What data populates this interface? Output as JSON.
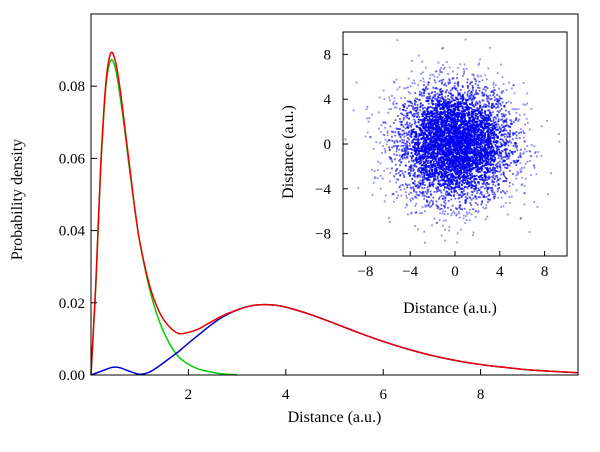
{
  "chart_data": [
    {
      "type": "line",
      "title": "",
      "xlabel": "Distance (a.u.)",
      "ylabel": "Probability density",
      "xlim": [
        0,
        10
      ],
      "ylim": [
        0,
        0.1
      ],
      "xticks": [
        2,
        4,
        6,
        8
      ],
      "xtick_labels": [
        "2",
        "4",
        "6",
        "8"
      ],
      "yticks": [
        0,
        0.02,
        0.04,
        0.06,
        0.08
      ],
      "ytick_labels": [
        "0.00",
        "0.02",
        "0.04",
        "0.06",
        "0.08"
      ],
      "grid": false,
      "legend": "none",
      "series": [
        {
          "color": "#00cc00",
          "x": [
            0,
            0.1,
            0.2,
            0.3,
            0.4,
            0.5,
            0.6,
            0.7,
            0.8,
            0.9,
            1.0,
            1.2,
            1.4,
            1.6,
            1.8,
            2.0,
            2.2,
            2.4,
            2.6,
            2.8,
            3.0
          ],
          "y": [
            0,
            0.025,
            0.057,
            0.079,
            0.087,
            0.085,
            0.077,
            0.067,
            0.056,
            0.046,
            0.037,
            0.024,
            0.015,
            0.009,
            0.005,
            0.003,
            0.0017,
            0.001,
            0.0005,
            0.0002,
            0
          ]
        },
        {
          "color": "#0000cc",
          "x": [
            0,
            0.2,
            0.4,
            0.5,
            0.6,
            0.8,
            1.0,
            1.2,
            1.4,
            1.6,
            1.8,
            2.0,
            2.2,
            2.4,
            2.6,
            2.8,
            3.0,
            3.2,
            3.4,
            3.6,
            3.8,
            4.0,
            4.5,
            5.0,
            5.5,
            6.0,
            6.5,
            7.0,
            7.5,
            8.0,
            8.5,
            9.0,
            9.5,
            10.0
          ],
          "y": [
            0,
            0.001,
            0.002,
            0.0022,
            0.002,
            0.001,
            0.0002,
            0.0008,
            0.0025,
            0.0045,
            0.0065,
            0.0088,
            0.011,
            0.0132,
            0.0152,
            0.0168,
            0.018,
            0.0189,
            0.0194,
            0.0195,
            0.0193,
            0.0188,
            0.0168,
            0.0143,
            0.0117,
            0.0093,
            0.0072,
            0.0054,
            0.004,
            0.0029,
            0.0021,
            0.0014,
            0.001,
            0.0006
          ]
        },
        {
          "color": "#ee0000",
          "x": [
            0,
            0.1,
            0.2,
            0.3,
            0.4,
            0.5,
            0.6,
            0.7,
            0.8,
            0.9,
            1.0,
            1.2,
            1.4,
            1.6,
            1.8,
            2.0,
            2.2,
            2.4,
            2.6,
            2.8,
            3.0,
            3.2,
            3.4,
            3.6,
            3.8,
            4.0,
            4.5,
            5.0,
            5.5,
            6.0,
            6.5,
            7.0,
            7.5,
            8.0,
            8.5,
            9.0,
            9.5,
            10.0
          ],
          "y": [
            0,
            0.026,
            0.058,
            0.08,
            0.089,
            0.087,
            0.079,
            0.068,
            0.057,
            0.046,
            0.037,
            0.025,
            0.0175,
            0.0135,
            0.0115,
            0.0118,
            0.0127,
            0.0142,
            0.0157,
            0.017,
            0.018,
            0.0189,
            0.0194,
            0.0195,
            0.0193,
            0.0188,
            0.0168,
            0.0143,
            0.0117,
            0.0093,
            0.0072,
            0.0054,
            0.004,
            0.0029,
            0.0021,
            0.0014,
            0.001,
            0.0006
          ]
        }
      ]
    },
    {
      "type": "scatter",
      "title": "",
      "xlabel": "Distance (a.u.)",
      "ylabel": "Distance (a.u.)",
      "xlim": [
        -10,
        10
      ],
      "ylim": [
        -10,
        10
      ],
      "xticks": [
        -8,
        -4,
        0,
        4,
        8
      ],
      "xtick_labels": [
        "−8",
        "−4",
        "0",
        "4",
        "8"
      ],
      "yticks": [
        -8,
        -4,
        0,
        4,
        8
      ],
      "ytick_labels": [
        "−8",
        "−4",
        "0",
        "4",
        "8"
      ],
      "grid": false,
      "legend": "none",
      "distribution": "2D Gaussian cloud centred at (0, 0), most points within radius 6, sparse out to about 10",
      "color": "#0000ee"
    }
  ]
}
